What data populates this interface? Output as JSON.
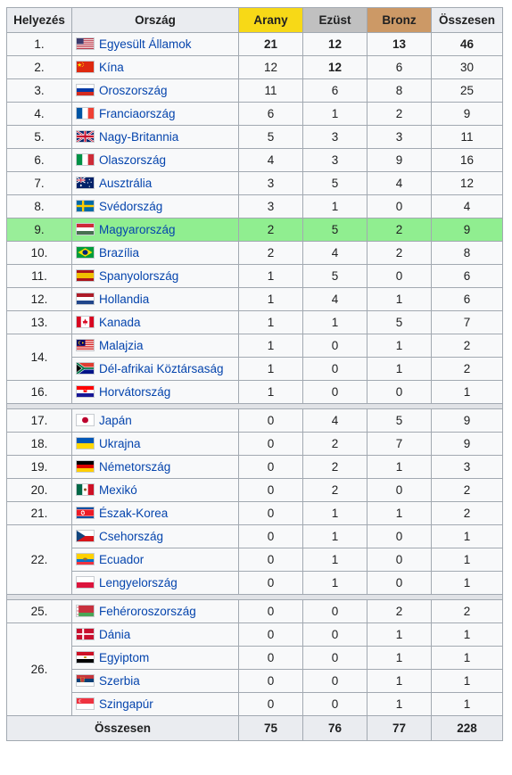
{
  "headers": {
    "rank": "Helyezés",
    "country": "Ország",
    "gold": "Arany",
    "silver": "Ezüst",
    "bronze": "Bronz",
    "total": "Összesen"
  },
  "colors": {
    "gold_header": "#f7d917",
    "silver_header": "#c0c0c0",
    "bronze_header": "#cc9966",
    "highlight_row": "#90ee90",
    "link": "#0645ad"
  },
  "groups": [
    [
      {
        "rank": "1.",
        "rows": [
          {
            "country": "Egyesült Államok",
            "flag": "usa-flag-icon",
            "gold": "21",
            "silver": "12",
            "bronze": "13",
            "total": "46",
            "bold": true
          }
        ]
      },
      {
        "rank": "2.",
        "rows": [
          {
            "country": "Kína",
            "flag": "china-flag-icon",
            "gold": "12",
            "silver": "12",
            "bronze": "6",
            "total": "30",
            "bold_silver": true
          }
        ]
      },
      {
        "rank": "3.",
        "rows": [
          {
            "country": "Oroszország",
            "flag": "russia-flag-icon",
            "gold": "11",
            "silver": "6",
            "bronze": "8",
            "total": "25"
          }
        ]
      },
      {
        "rank": "4.",
        "rows": [
          {
            "country": "Franciaország",
            "flag": "france-flag-icon",
            "gold": "6",
            "silver": "1",
            "bronze": "2",
            "total": "9"
          }
        ]
      },
      {
        "rank": "5.",
        "rows": [
          {
            "country": "Nagy-Britannia",
            "flag": "uk-flag-icon",
            "gold": "5",
            "silver": "3",
            "bronze": "3",
            "total": "11"
          }
        ]
      },
      {
        "rank": "6.",
        "rows": [
          {
            "country": "Olaszország",
            "flag": "italy-flag-icon",
            "gold": "4",
            "silver": "3",
            "bronze": "9",
            "total": "16"
          }
        ]
      },
      {
        "rank": "7.",
        "rows": [
          {
            "country": "Ausztrália",
            "flag": "australia-flag-icon",
            "gold": "3",
            "silver": "5",
            "bronze": "4",
            "total": "12"
          }
        ]
      },
      {
        "rank": "8.",
        "rows": [
          {
            "country": "Svédország",
            "flag": "sweden-flag-icon",
            "gold": "3",
            "silver": "1",
            "bronze": "0",
            "total": "4"
          }
        ]
      },
      {
        "rank": "9.",
        "host": true,
        "rows": [
          {
            "country": "Magyarország",
            "flag": "hungary-flag-icon",
            "gold": "2",
            "silver": "5",
            "bronze": "2",
            "total": "9"
          }
        ]
      },
      {
        "rank": "10.",
        "rows": [
          {
            "country": "Brazília",
            "flag": "brazil-flag-icon",
            "gold": "2",
            "silver": "4",
            "bronze": "2",
            "total": "8"
          }
        ]
      },
      {
        "rank": "11.",
        "rows": [
          {
            "country": "Spanyolország",
            "flag": "spain-flag-icon",
            "gold": "1",
            "silver": "5",
            "bronze": "0",
            "total": "6"
          }
        ]
      },
      {
        "rank": "12.",
        "rows": [
          {
            "country": "Hollandia",
            "flag": "netherlands-flag-icon",
            "gold": "1",
            "silver": "4",
            "bronze": "1",
            "total": "6"
          }
        ]
      },
      {
        "rank": "13.",
        "rows": [
          {
            "country": "Kanada",
            "flag": "canada-flag-icon",
            "gold": "1",
            "silver": "1",
            "bronze": "5",
            "total": "7"
          }
        ]
      },
      {
        "rank": "14.",
        "rows": [
          {
            "country": "Malajzia",
            "flag": "malaysia-flag-icon",
            "gold": "1",
            "silver": "0",
            "bronze": "1",
            "total": "2"
          },
          {
            "country": "Dél-afrikai Köztársaság",
            "flag": "south-africa-flag-icon",
            "gold": "1",
            "silver": "0",
            "bronze": "1",
            "total": "2"
          }
        ]
      },
      {
        "rank": "16.",
        "rows": [
          {
            "country": "Horvátország",
            "flag": "croatia-flag-icon",
            "gold": "1",
            "silver": "0",
            "bronze": "0",
            "total": "1"
          }
        ]
      }
    ],
    [
      {
        "rank": "17.",
        "rows": [
          {
            "country": "Japán",
            "flag": "japan-flag-icon",
            "gold": "0",
            "silver": "4",
            "bronze": "5",
            "total": "9"
          }
        ]
      },
      {
        "rank": "18.",
        "rows": [
          {
            "country": "Ukrajna",
            "flag": "ukraine-flag-icon",
            "gold": "0",
            "silver": "2",
            "bronze": "7",
            "total": "9"
          }
        ]
      },
      {
        "rank": "19.",
        "rows": [
          {
            "country": "Németország",
            "flag": "germany-flag-icon",
            "gold": "0",
            "silver": "2",
            "bronze": "1",
            "total": "3"
          }
        ]
      },
      {
        "rank": "20.",
        "rows": [
          {
            "country": "Mexikó",
            "flag": "mexico-flag-icon",
            "gold": "0",
            "silver": "2",
            "bronze": "0",
            "total": "2"
          }
        ]
      },
      {
        "rank": "21.",
        "rows": [
          {
            "country": "Észak-Korea",
            "flag": "north-korea-flag-icon",
            "gold": "0",
            "silver": "1",
            "bronze": "1",
            "total": "2"
          }
        ]
      },
      {
        "rank": "22.",
        "rows": [
          {
            "country": "Csehország",
            "flag": "czech-flag-icon",
            "gold": "0",
            "silver": "1",
            "bronze": "0",
            "total": "1"
          },
          {
            "country": "Ecuador",
            "flag": "ecuador-flag-icon",
            "gold": "0",
            "silver": "1",
            "bronze": "0",
            "total": "1"
          },
          {
            "country": "Lengyelország",
            "flag": "poland-flag-icon",
            "gold": "0",
            "silver": "1",
            "bronze": "0",
            "total": "1"
          }
        ]
      }
    ],
    [
      {
        "rank": "25.",
        "rows": [
          {
            "country": "Fehéroroszország",
            "flag": "belarus-flag-icon",
            "gold": "0",
            "silver": "0",
            "bronze": "2",
            "total": "2"
          }
        ]
      },
      {
        "rank": "26.",
        "rows": [
          {
            "country": "Dánia",
            "flag": "denmark-flag-icon",
            "gold": "0",
            "silver": "0",
            "bronze": "1",
            "total": "1"
          },
          {
            "country": "Egyiptom",
            "flag": "egypt-flag-icon",
            "gold": "0",
            "silver": "0",
            "bronze": "1",
            "total": "1"
          },
          {
            "country": "Szerbia",
            "flag": "serbia-flag-icon",
            "gold": "0",
            "silver": "0",
            "bronze": "1",
            "total": "1"
          },
          {
            "country": "Szingapúr",
            "flag": "singapore-flag-icon",
            "gold": "0",
            "silver": "0",
            "bronze": "1",
            "total": "1"
          }
        ]
      }
    ]
  ],
  "totals": {
    "label": "Összesen",
    "gold": "75",
    "silver": "76",
    "bronze": "77",
    "total": "228"
  }
}
